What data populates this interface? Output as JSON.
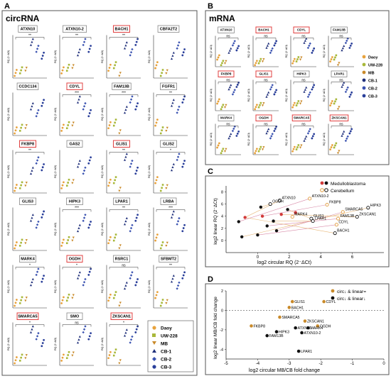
{
  "panels": {
    "A": {
      "letter": "A",
      "title": "circRNA",
      "axis_label": "RQ (2⁻ΔCt)",
      "genes": [
        {
          "name": "ATXN10",
          "boxed": false,
          "sig": "**"
        },
        {
          "name": "ATXN10-2",
          "boxed": false,
          "sig": "**"
        },
        {
          "name": "BACH1",
          "boxed": true,
          "sig": "**"
        },
        {
          "name": "CBFA2T2",
          "boxed": false,
          "sig": ""
        },
        {
          "name": "CCDC134",
          "boxed": false,
          "sig": ""
        },
        {
          "name": "CDYL",
          "boxed": true,
          "sig": "***"
        },
        {
          "name": "FAM13B",
          "boxed": false,
          "sig": "***"
        },
        {
          "name": "FGFR1",
          "boxed": false,
          "sig": "**"
        },
        {
          "name": "FKBP8",
          "boxed": true,
          "sig": "**"
        },
        {
          "name": "GAS2",
          "boxed": false,
          "sig": ""
        },
        {
          "name": "GLIS1",
          "boxed": true,
          "sig": "**"
        },
        {
          "name": "GLIS2",
          "boxed": false,
          "sig": "*"
        },
        {
          "name": "GLIS3",
          "boxed": false,
          "sig": ""
        },
        {
          "name": "HIPK3",
          "boxed": false,
          "sig": "***"
        },
        {
          "name": "LPAR1",
          "boxed": false,
          "sig": "**"
        },
        {
          "name": "LRBA",
          "boxed": false,
          "sig": "***"
        },
        {
          "name": "MARK4",
          "boxed": false,
          "sig": "*"
        },
        {
          "name": "OGDH",
          "boxed": true,
          "sig": "*"
        },
        {
          "name": "RSRC1",
          "boxed": false,
          "sig": "ns"
        },
        {
          "name": "SFBMT2",
          "boxed": false,
          "sig": "**"
        },
        {
          "name": "SMARCA5",
          "boxed": true,
          "sig": "*"
        },
        {
          "name": "SMO",
          "boxed": false,
          "sig": "ns"
        },
        {
          "name": "ZKSCAN1",
          "boxed": true,
          "sig": "*"
        }
      ],
      "legend": [
        "Daoy",
        "UW-228",
        "MB",
        "CB-1",
        "CB-2",
        "CB-3"
      ]
    },
    "B": {
      "letter": "B",
      "title": "mRNA",
      "axis_label": "RQ (2⁻ΔCt)",
      "genes": [
        {
          "name": "ATXN10",
          "boxed": false
        },
        {
          "name": "BACH1",
          "boxed": true
        },
        {
          "name": "CDYL",
          "boxed": true
        },
        {
          "name": "FAM13B",
          "boxed": false
        },
        {
          "name": "FKBP8",
          "boxed": true
        },
        {
          "name": "GLIS1",
          "boxed": true
        },
        {
          "name": "HIPK3",
          "boxed": false
        },
        {
          "name": "LPAR1",
          "boxed": false
        },
        {
          "name": "MARK4",
          "boxed": false
        },
        {
          "name": "OGDH",
          "boxed": true
        },
        {
          "name": "SMARCA5",
          "boxed": true
        },
        {
          "name": "ZKSCAN1",
          "boxed": true
        }
      ],
      "legend": [
        "Daoy",
        "UW-228",
        "MB",
        "CB-1",
        "CB-2",
        "CB-3"
      ]
    },
    "C": {
      "letter": "C",
      "legend": [
        "Medulloblastoma",
        "Cerebellum"
      ],
      "xlabel": "log2 circular RQ (2⁻ΔCt)",
      "ylabel": "log2 linear RQ (2⁻ΔCt)"
    },
    "D": {
      "letter": "D",
      "legend": [
        "circ↓ & linear=",
        "circ↓ & linear↓"
      ],
      "xlabel": "log2 circular MB/CB fold change",
      "ylabel": "log2 linear MB/CB fold change"
    }
  },
  "colors": {
    "daoy": "#e8a23c",
    "uw228": "#a8b83a",
    "mb": "#c98a2a",
    "cb1": "#1f2f7a",
    "cb2": "#3a52b0",
    "cb3": "#2a3f9a",
    "red_box": "#e04040",
    "mb_fill": "#c98a2a",
    "cb_open": "#222222",
    "pink": "#d65a8a"
  },
  "chart_data": [
    {
      "type": "scatter",
      "xlabel": "log2 circular RQ (2⁻ΔCt)",
      "ylabel": "log2 linear RQ (2⁻ΔCt)",
      "xlim": [
        -2,
        8
      ],
      "ylim": [
        -2,
        9
      ],
      "x_ticks": [
        0,
        2,
        4,
        6
      ],
      "x_tick_labels": [
        "0",
        "2",
        "4",
        "6"
      ],
      "y_ticks": [
        0,
        2,
        4,
        6,
        8
      ],
      "y_tick_labels": [
        "0",
        "2",
        "4",
        "6",
        "8"
      ],
      "legend": [
        "Medulloblastoma",
        "Cerebellum"
      ],
      "series": [
        {
          "name": "Medulloblastoma",
          "points": [
            {
              "x": -0.8,
              "y": 3.8
            },
            {
              "x": -1.2,
              "y": 3.1
            },
            {
              "x": 0.2,
              "y": 5.5
            },
            {
              "x": 0.3,
              "y": 4.0
            },
            {
              "x": -1.0,
              "y": 0.6
            },
            {
              "x": 1.2,
              "y": 1.6
            },
            {
              "x": 1.5,
              "y": 4.3
            },
            {
              "x": 0.6,
              "y": 2.4
            },
            {
              "x": 1.9,
              "y": 5.1
            },
            {
              "x": 2.4,
              "y": 4.6
            },
            {
              "x": 1.0,
              "y": 3.2
            },
            {
              "x": 0.0,
              "y": 0.9
            }
          ]
        },
        {
          "name": "Cerebellum",
          "points": [
            {
              "x": 1.4,
              "y": 6.6,
              "label": "ATXN10"
            },
            {
              "x": 3.3,
              "y": 6.9,
              "label": "ATXN10-2"
            },
            {
              "x": 0.8,
              "y": 6.0,
              "label": "OGDH"
            },
            {
              "x": 4.4,
              "y": 5.9,
              "label": "FKBP8"
            },
            {
              "x": 7.0,
              "y": 5.4,
              "label": "HIPK3"
            },
            {
              "x": 5.4,
              "y": 4.7,
              "label": "SMARCA5"
            },
            {
              "x": 6.3,
              "y": 3.9,
              "label": "ZKSCAN1"
            },
            {
              "x": 5.1,
              "y": 3.6,
              "label": "FAM13B"
            },
            {
              "x": 3.4,
              "y": 3.6,
              "label": "GLIS1"
            },
            {
              "x": 2.2,
              "y": 3.9,
              "label": "MARK4"
            },
            {
              "x": 3.5,
              "y": 3.2,
              "label": "LPAR1"
            },
            {
              "x": 5.0,
              "y": 2.6,
              "label": "CDYL"
            },
            {
              "x": 4.9,
              "y": 1.2,
              "label": "BACH1"
            }
          ]
        }
      ]
    },
    {
      "type": "scatter",
      "xlabel": "log2 circular MB/CB fold change",
      "ylabel": "log2 linear MB/CB fold change",
      "xlim": [
        -5,
        0
      ],
      "ylim": [
        -5,
        2
      ],
      "x_ticks": [
        -5,
        -4,
        -3,
        -2,
        -1,
        0
      ],
      "x_tick_labels": [
        "-5",
        "-4",
        "-3",
        "-2",
        "-1",
        "0"
      ],
      "y_ticks": [
        -4,
        -2,
        0,
        2
      ],
      "y_tick_labels": [
        "-4",
        "-2",
        "0",
        "2"
      ],
      "legend": [
        "circ↓ & linear=",
        "circ↓ & linear↓"
      ],
      "series": [
        {
          "name": "circ↓ & linear=",
          "points": [
            {
              "x": -2.9,
              "y": 0.9,
              "label": "GLIS1"
            },
            {
              "x": -1.9,
              "y": 0.9,
              "label": "CDYL"
            },
            {
              "x": -3.0,
              "y": 0.3,
              "label": "BACH1"
            },
            {
              "x": -3.3,
              "y": -0.7,
              "label": "SMARCA5"
            },
            {
              "x": -4.2,
              "y": -1.6,
              "label": "FKBP8"
            },
            {
              "x": -2.5,
              "y": -1.1,
              "label": "ZKSCAN1"
            },
            {
              "x": -2.1,
              "y": -1.6,
              "label": "OGDH"
            }
          ]
        },
        {
          "name": "circ↓ & linear↓",
          "points": [
            {
              "x": -2.8,
              "y": -1.8,
              "label": "ATXN10"
            },
            {
              "x": -2.4,
              "y": -1.8,
              "label": "MARK4"
            },
            {
              "x": -2.6,
              "y": -2.3,
              "label": "ATXN10-2"
            },
            {
              "x": -3.4,
              "y": -2.2,
              "label": "HIPK3"
            },
            {
              "x": -3.7,
              "y": -2.6,
              "label": "FAM13B"
            },
            {
              "x": -2.7,
              "y": -4.2,
              "label": "LPAR1"
            }
          ]
        }
      ]
    }
  ]
}
